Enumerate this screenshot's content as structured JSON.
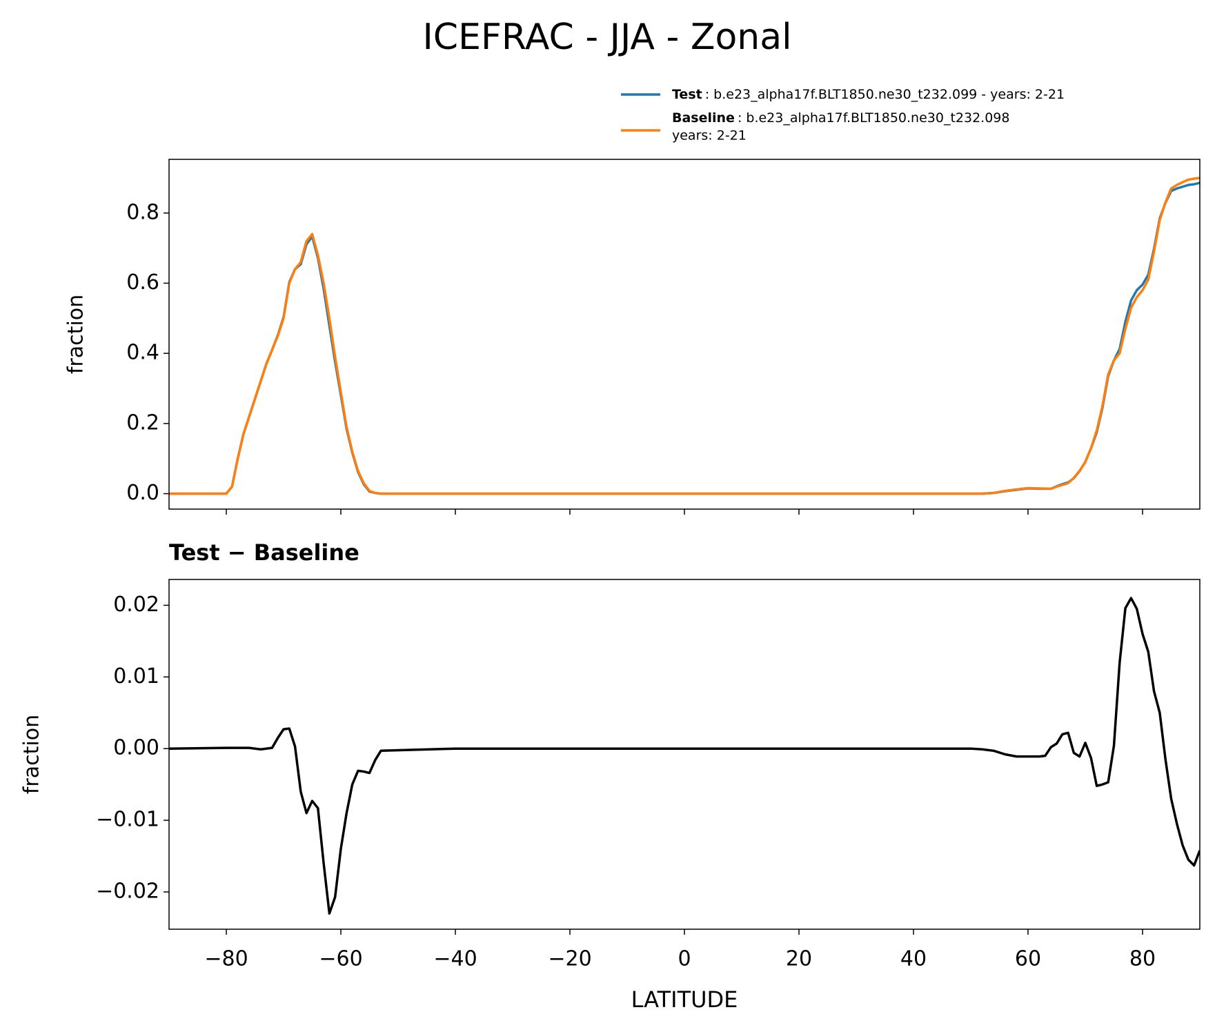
{
  "title": "ICEFRAC - JJA - Zonal",
  "chart_data": [
    {
      "type": "line",
      "ylabel": "fraction",
      "x": [
        -90,
        -80,
        -79,
        -78,
        -77,
        -76,
        -75,
        -74,
        -73,
        -72,
        -71,
        -70,
        -69,
        -68,
        -67,
        -66,
        -65,
        -64,
        -63,
        -62,
        -61,
        -60,
        -59,
        -58,
        -57,
        -56,
        -55,
        -54,
        -53,
        -40,
        -20,
        0,
        20,
        40,
        50,
        52,
        54,
        56,
        58,
        60,
        62,
        64,
        65,
        66,
        67,
        68,
        69,
        70,
        71,
        72,
        73,
        74,
        75,
        76,
        77,
        78,
        79,
        80,
        81,
        82,
        83,
        84,
        85,
        86,
        87,
        88,
        89,
        90
      ],
      "series": [
        {
          "name": "Test",
          "legend_label": [
            ": b.e23_alpha17f.BLT1850.ne30_t232.099 - years: 2-21"
          ],
          "color": "#1f77b4",
          "values": [
            0,
            0,
            0.02,
            0.1,
            0.17,
            0.22,
            0.27,
            0.32,
            0.37,
            0.41,
            0.452,
            0.503,
            0.603,
            0.64,
            0.654,
            0.711,
            0.733,
            0.672,
            0.584,
            0.479,
            0.376,
            0.281,
            0.185,
            0.117,
            0.062,
            0.027,
            0.006,
            0.002,
            0,
            0,
            0,
            0,
            0,
            0,
            0,
            0,
            0.002,
            0.007,
            0.011,
            0.015,
            0.014,
            0.014,
            0.021,
            0.027,
            0.032,
            0.044,
            0.064,
            0.091,
            0.129,
            0.175,
            0.245,
            0.335,
            0.38,
            0.412,
            0.49,
            0.551,
            0.58,
            0.596,
            0.624,
            0.698,
            0.785,
            0.829,
            0.863,
            0.87,
            0.875,
            0.88,
            0.882,
            0.886
          ]
        },
        {
          "name": "Baseline",
          "legend_label": [
            ": b.e23_alpha17f.BLT1850.ne30_t232.098",
            "years: 2-21"
          ],
          "color": "#ff7f0e",
          "values": [
            0,
            0,
            0.02,
            0.1,
            0.17,
            0.22,
            0.27,
            0.32,
            0.37,
            0.41,
            0.45,
            0.5,
            0.6,
            0.64,
            0.66,
            0.72,
            0.74,
            0.68,
            0.6,
            0.5,
            0.39,
            0.29,
            0.19,
            0.12,
            0.065,
            0.03,
            0.008,
            0.002,
            0,
            0,
            0,
            0,
            0,
            0,
            0,
            0,
            0.002,
            0.008,
            0.012,
            0.016,
            0.015,
            0.014,
            0.02,
            0.025,
            0.03,
            0.045,
            0.065,
            0.09,
            0.13,
            0.18,
            0.25,
            0.34,
            0.38,
            0.4,
            0.47,
            0.53,
            0.56,
            0.58,
            0.61,
            0.69,
            0.78,
            0.83,
            0.87,
            0.88,
            0.888,
            0.895,
            0.898,
            0.9
          ]
        }
      ],
      "xlim": [
        -90,
        90
      ],
      "xticks": [
        -80,
        -60,
        -40,
        -20,
        0,
        20,
        40,
        60,
        80
      ],
      "ylim": [
        -0.044,
        0.953
      ],
      "yticks": [
        {
          "value": 0,
          "label": "0.0"
        },
        {
          "value": 0.2,
          "label": "0.2"
        },
        {
          "value": 0.4,
          "label": "0.4"
        },
        {
          "value": 0.6,
          "label": "0.6"
        },
        {
          "value": 0.8,
          "label": "0.8"
        }
      ]
    },
    {
      "type": "line",
      "title": "Test − Baseline",
      "ylabel": "fraction",
      "xlabel": "LATITUDE",
      "x": [
        -90,
        -80,
        -78,
        -76,
        -74,
        -72,
        -71,
        -70,
        -69,
        -68,
        -67,
        -66,
        -65,
        -64,
        -63,
        -62,
        -61,
        -60,
        -59,
        -58,
        -57,
        -56,
        -55,
        -54,
        -53,
        -40,
        -20,
        0,
        20,
        40,
        50,
        52,
        54,
        56,
        58,
        60,
        62,
        63,
        64,
        65,
        66,
        67,
        68,
        69,
        70,
        71,
        72,
        73,
        74,
        75,
        76,
        77,
        78,
        79,
        80,
        81,
        82,
        83,
        84,
        85,
        86,
        87,
        88,
        89,
        90
      ],
      "series": [
        {
          "color": "#000000",
          "values": [
            0,
            0.0001,
            0.0001,
            0.0001,
            -0.0001,
            0.0001,
            0.0015,
            0.0027,
            0.0028,
            0.0003,
            -0.006,
            -0.009,
            -0.0073,
            -0.0083,
            -0.016,
            -0.023,
            -0.0207,
            -0.014,
            -0.009,
            -0.005,
            -0.0031,
            -0.0032,
            -0.0034,
            -0.0016,
            -0.0003,
            0,
            0,
            0,
            0,
            0,
            0,
            -0.0001,
            -0.0003,
            -0.0008,
            -0.0011,
            -0.0011,
            -0.0011,
            -0.001,
            0.0002,
            0.0007,
            0.002,
            0.0022,
            -0.0006,
            -0.0011,
            0.0008,
            -0.0013,
            -0.0052,
            -0.005,
            -0.0047,
            0.0004,
            0.012,
            0.0196,
            0.021,
            0.0195,
            0.016,
            0.0135,
            0.008,
            0.005,
            -0.0015,
            -0.007,
            -0.0105,
            -0.0135,
            -0.0155,
            -0.0163,
            -0.0142
          ]
        }
      ],
      "xlim": [
        -90,
        90
      ],
      "xticks": [
        {
          "value": -80,
          "label": "−80"
        },
        {
          "value": -60,
          "label": "−60"
        },
        {
          "value": -40,
          "label": "−40"
        },
        {
          "value": -20,
          "label": "−20"
        },
        0,
        20,
        40,
        60,
        80
      ],
      "ylim": [
        -0.0252,
        0.0236
      ],
      "yticks": [
        {
          "value": -0.02,
          "label": "−0.02"
        },
        {
          "value": -0.01,
          "label": "−0.01"
        },
        {
          "value": 0,
          "label": "0.00"
        },
        {
          "value": 0.01,
          "label": "0.01"
        },
        {
          "value": 0.02,
          "label": "0.02"
        }
      ]
    }
  ]
}
